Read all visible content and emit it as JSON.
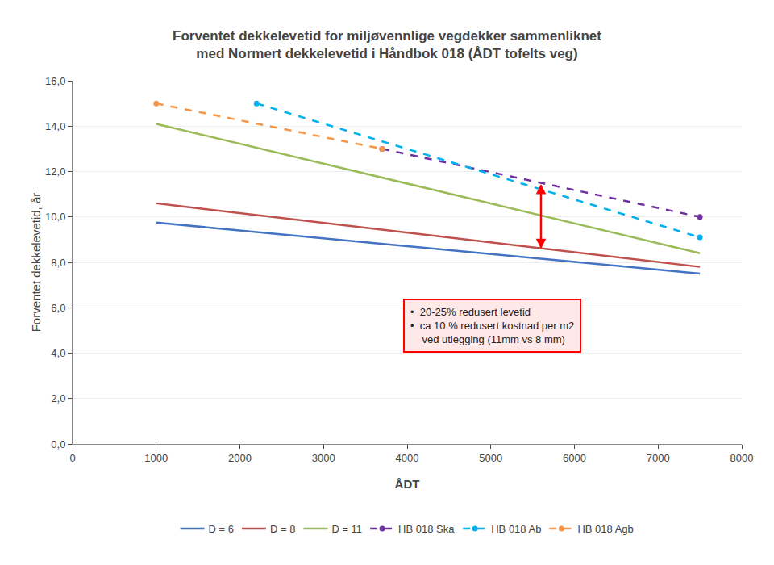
{
  "chart_data": {
    "type": "line",
    "title": "Forventet dekkelevetid for miljøvennlige vegdekker sammenliknet\nmed Normert dekkelevetid i Håndbok 018 (ÅDT tofelts veg)",
    "x_label": "ÅDT",
    "y_label": "Forventet dekkelevetid, år",
    "xlim": [
      0,
      8000
    ],
    "ylim": [
      0.0,
      16.0
    ],
    "xticks": [
      0,
      1000,
      2000,
      3000,
      4000,
      5000,
      6000,
      7000,
      8000
    ],
    "yticks": [
      {
        "value": 0.0,
        "label": "0,0"
      },
      {
        "value": 2.0,
        "label": "2,0"
      },
      {
        "value": 4.0,
        "label": "4,0"
      },
      {
        "value": 6.0,
        "label": "6,0"
      },
      {
        "value": 8.0,
        "label": "8,0"
      },
      {
        "value": 10.0,
        "label": "10,0"
      },
      {
        "value": 12.0,
        "label": "12,0"
      },
      {
        "value": 14.0,
        "label": "14,0"
      },
      {
        "value": 16.0,
        "label": "16,0"
      }
    ],
    "grid": "y",
    "legend": "bottom",
    "series": [
      {
        "name": "D = 6",
        "color": "#4472C4",
        "x": [
          1000,
          7500
        ],
        "values": [
          9.75,
          7.5
        ],
        "line_style": "solid"
      },
      {
        "name": "D = 8",
        "color": "#C0504D",
        "x": [
          1000,
          7500
        ],
        "values": [
          10.6,
          7.8
        ],
        "line_style": "solid"
      },
      {
        "name": "D = 11",
        "color": "#9BBB59",
        "x": [
          1000,
          7500
        ],
        "values": [
          14.1,
          8.4
        ],
        "line_style": "solid"
      },
      {
        "name": "HB 018 Ska",
        "color": "#7030A0",
        "x": [
          3700,
          7500
        ],
        "values": [
          13.0,
          10.0
        ],
        "line_style": "dashed",
        "marker": "circle"
      },
      {
        "name": "HB 018 Ab",
        "color": "#00B0F0",
        "x": [
          2200,
          7500
        ],
        "values": [
          15.0,
          9.1
        ],
        "line_style": "dashed",
        "marker": "circle"
      },
      {
        "name": "HB 018 Agb",
        "color": "#F79646",
        "x": [
          1000,
          3700
        ],
        "values": [
          15.0,
          13.0
        ],
        "line_style": "dashed",
        "marker": "circle"
      }
    ],
    "arrow": {
      "x": 5600,
      "y": [
        8.6,
        11.5
      ],
      "color": "#FF0000"
    },
    "annotations": [
      {
        "text": "•  20-25% redusert levetid\n•  ca 10 % redusert kostnad per m2\n    ved utlegging (11mm vs 8 mm)",
        "x": 3950,
        "y": 6.4
      }
    ]
  }
}
